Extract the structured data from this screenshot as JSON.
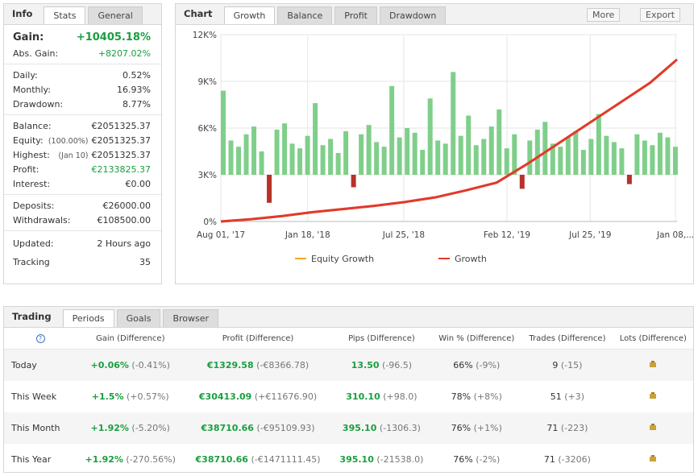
{
  "info": {
    "tabs": [
      "Info",
      "Stats",
      "General"
    ],
    "groups": [
      [
        {
          "label": "Gain:",
          "value": "+10405.18%",
          "color": "#1a9e3f"
        },
        {
          "label": "Abs. Gain:",
          "value": "+8207.02%",
          "color": "#1a9e3f"
        }
      ],
      [
        {
          "label": "Daily:",
          "value": "0.52%"
        },
        {
          "label": "Monthly:",
          "value": "16.93%"
        },
        {
          "label": "Drawdown:",
          "value": "8.77%"
        }
      ],
      [
        {
          "label": "Balance:",
          "value": "€2051325.37"
        },
        {
          "label": "Equity:",
          "note": "(100.00%)",
          "value": "€2051325.37"
        },
        {
          "label": "Highest:",
          "note": "(Jan 10)",
          "value": "€2051325.37"
        },
        {
          "label": "Profit:",
          "value": "€2133825.37",
          "color": "#1a9e3f"
        },
        {
          "label": "Interest:",
          "value": "€0.00"
        }
      ],
      [
        {
          "label": "Deposits:",
          "value": "€26000.00"
        },
        {
          "label": "Withdrawals:",
          "value": "€108500.00"
        }
      ],
      [
        {
          "label": "Updated:",
          "value": "2 Hours ago"
        },
        {
          "label": "Tracking",
          "value": "35"
        }
      ]
    ]
  },
  "chart_panel": {
    "title": "Chart",
    "tabs": [
      "Growth",
      "Balance",
      "Profit",
      "Drawdown"
    ],
    "buttons": [
      "More",
      "Export"
    ]
  },
  "chart_data": {
    "type": "line",
    "x": [
      0,
      60,
      120,
      180,
      240,
      300,
      360,
      420,
      480,
      540,
      600,
      660,
      720,
      780,
      840,
      893
    ],
    "series": [
      {
        "name": "Equity Growth",
        "color": "#f5a623",
        "values": [
          0,
          150,
          350,
          600,
          800,
          1000,
          1250,
          1550,
          2000,
          2500,
          3700,
          5000,
          6300,
          7600,
          8900,
          10405
        ]
      },
      {
        "name": "Growth",
        "color": "#e03a2f",
        "values": [
          0,
          150,
          350,
          600,
          800,
          1000,
          1250,
          1550,
          2000,
          2500,
          3700,
          5000,
          6300,
          7600,
          8900,
          10405
        ]
      }
    ],
    "bars": {
      "color": "#7fcf8a",
      "neg_color": "#b83228",
      "x": [
        0,
        15,
        30,
        45,
        60,
        75,
        90,
        105,
        120,
        135,
        150,
        165,
        180,
        195,
        210,
        225,
        240,
        255,
        270,
        285,
        300,
        315,
        330,
        345,
        360,
        375,
        390,
        405,
        420,
        435,
        450,
        465,
        480,
        495,
        510,
        525,
        540,
        555,
        570,
        585,
        600,
        615,
        630,
        645,
        660,
        675,
        690,
        705,
        720,
        735,
        750,
        765,
        780,
        795,
        810,
        825,
        840,
        855,
        870,
        885
      ],
      "values": [
        8400,
        5200,
        4800,
        5600,
        6100,
        4500,
        1200,
        5900,
        6300,
        5000,
        4700,
        5500,
        7600,
        4900,
        5300,
        4400,
        5800,
        2200,
        5600,
        6200,
        5100,
        4800,
        8700,
        5400,
        6000,
        5700,
        4600,
        7900,
        5200,
        5000,
        9600,
        5500,
        6800,
        4900,
        5300,
        6100,
        7200,
        4700,
        5600,
        2100,
        5200,
        5900,
        6400,
        5000,
        4800,
        5400,
        5800,
        4600,
        5300,
        6900,
        5500,
        5100,
        4700,
        2400,
        5600,
        5200,
        4900,
        5700,
        5400,
        4800
      ]
    },
    "xlim": [
      0,
      893
    ],
    "xticks": [
      {
        "value": 0,
        "label": "Aug 01, '17"
      },
      {
        "value": 170,
        "label": "Jan 18, '18"
      },
      {
        "value": 358,
        "label": "Jul 25, '18"
      },
      {
        "value": 560,
        "label": "Feb 12, '19"
      },
      {
        "value": 723,
        "label": "Jul 25, '19"
      },
      {
        "value": 890,
        "label": "Jan 08,..."
      }
    ],
    "ylim": [
      0,
      12000
    ],
    "yticks": [
      {
        "value": 0,
        "label": "0%"
      },
      {
        "value": 3000,
        "label": "3K%"
      },
      {
        "value": 6000,
        "label": "6K%"
      },
      {
        "value": 9000,
        "label": "9K%"
      },
      {
        "value": 12000,
        "label": "12K%"
      }
    ],
    "grid": true
  },
  "trading": {
    "tabs": [
      "Trading",
      "Periods",
      "Goals",
      "Browser"
    ],
    "columns": [
      "?",
      "Gain (Difference)",
      "Profit (Difference)",
      "Pips (Difference)",
      "Win % (Difference)",
      "Trades (Difference)",
      "Lots (Difference)"
    ],
    "rows": [
      {
        "label": "Today",
        "cells": [
          {
            "value": "+0.06%",
            "diff": "(-0.41%)"
          },
          {
            "value": "€1329.58",
            "diff": "(-€8366.78)"
          },
          {
            "value": "13.50",
            "diff": "(-96.5)"
          },
          {
            "value": "66%",
            "diff": "(-9%)"
          },
          {
            "value": "9",
            "diff": "(-15)"
          }
        ]
      },
      {
        "label": "This Week",
        "cells": [
          {
            "value": "+1.5%",
            "diff": "(+0.57%)"
          },
          {
            "value": "€30413.09",
            "diff": "(+€11676.90)"
          },
          {
            "value": "310.10",
            "diff": "(+98.0)"
          },
          {
            "value": "78%",
            "diff": "(+8%)"
          },
          {
            "value": "51",
            "diff": "(+3)"
          }
        ]
      },
      {
        "label": "This Month",
        "cells": [
          {
            "value": "+1.92%",
            "diff": "(-5.20%)"
          },
          {
            "value": "€38710.66",
            "diff": "(-€95109.93)"
          },
          {
            "value": "395.10",
            "diff": "(-1306.3)"
          },
          {
            "value": "76%",
            "diff": "(+1%)"
          },
          {
            "value": "71",
            "diff": "(-223)"
          }
        ]
      },
      {
        "label": "This Year",
        "cells": [
          {
            "value": "+1.92%",
            "diff": "(-270.56%)"
          },
          {
            "value": "€38710.66",
            "diff": "(-€1471111.45)"
          },
          {
            "value": "395.10",
            "diff": "(-21538.0)"
          },
          {
            "value": "76%",
            "diff": "(-2%)"
          },
          {
            "value": "71",
            "diff": "(-3206)"
          }
        ]
      }
    ],
    "value_color": "#1a9e3f"
  }
}
